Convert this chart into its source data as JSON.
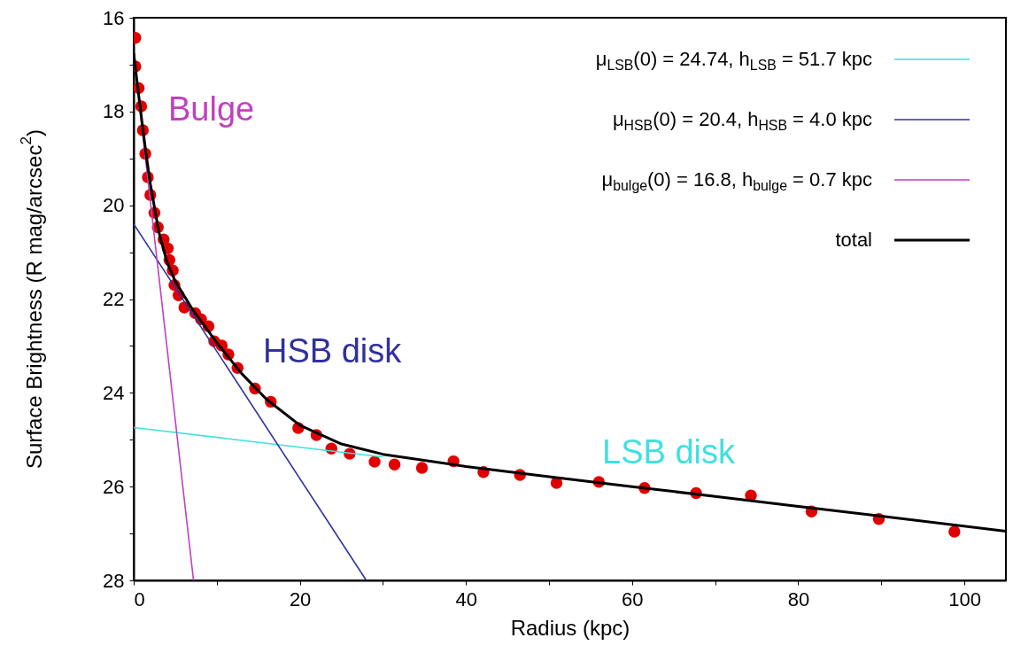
{
  "chart_data": {
    "type": "line",
    "xlabel": "Radius (kpc)",
    "ylabel": "Surface Brightness (R mag/arcsec$^{2}$)",
    "xlim": [
      0,
      105
    ],
    "ylim": [
      28,
      16
    ],
    "xticks": [
      0,
      {
        "value": 10,
        "label": null
      },
      20,
      {
        "value": 30,
        "label": null
      },
      40,
      {
        "value": 50,
        "label": null
      },
      60,
      {
        "value": 70,
        "label": null
      },
      80,
      {
        "value": 90,
        "label": null
      },
      100
    ],
    "yticks": [
      16,
      {
        "value": 17,
        "label": null
      },
      18,
      {
        "value": 19,
        "label": null
      },
      20,
      {
        "value": 21,
        "label": null
      },
      22,
      {
        "value": 23,
        "label": null
      },
      24,
      {
        "value": 25,
        "label": null
      },
      26,
      {
        "value": 27,
        "label": null
      },
      28
    ],
    "grid": false,
    "legend": "top right",
    "series": [
      {
        "name": "μ$_{LSB}$(0) = 24.74, h$_{LSB}$ = 51.7 kpc",
        "color": "#40e0e0",
        "x": [
          0,
          30
        ],
        "values": [
          24.74,
          25.37
        ]
      },
      {
        "name": "μ$_{HSB}$(0) = 20.4, h$_{HSB}$ = 4.0 kpc",
        "color": "#3030a0",
        "x": [
          0,
          28
        ],
        "values": [
          20.4,
          28
        ]
      },
      {
        "name": "μ$_{bulge}$(0) = 16.8, h$_{bulge}$ = 0.7 kpc",
        "color": "#c040c0",
        "x": [
          0,
          7.2
        ],
        "values": [
          16.8,
          28
        ]
      },
      {
        "type": "scatter",
        "marker": "circle",
        "color": "#e00000",
        "x": [
          0.2,
          0.2,
          0.6,
          0.9,
          1.1,
          1.4,
          1.7,
          2.0,
          2.5,
          2.9,
          3.6,
          4.1,
          4.3,
          4.7,
          4.9,
          5.4,
          6.1,
          7.4,
          8.1,
          9.0,
          9.7,
          10.6,
          11.4,
          12.5,
          14.6,
          16.5,
          19.8,
          22.0,
          23.8,
          26.0,
          29.0,
          31.4,
          34.7,
          38.5,
          42.1,
          46.5,
          50.9,
          56.0,
          61.5,
          67.7,
          74.3,
          81.6,
          89.7,
          98.8
        ],
        "values": [
          16.43,
          17.04,
          17.5,
          17.89,
          18.4,
          18.9,
          19.4,
          19.78,
          20.16,
          20.47,
          20.73,
          20.92,
          21.17,
          21.39,
          21.7,
          21.92,
          22.18,
          22.3,
          22.43,
          22.58,
          22.9,
          22.99,
          23.18,
          23.47,
          23.91,
          24.19,
          24.75,
          24.9,
          25.19,
          25.3,
          25.47,
          25.53,
          25.6,
          25.46,
          25.69,
          25.75,
          25.92,
          25.9,
          26.03,
          26.14,
          26.19,
          26.53,
          26.69,
          26.96
        ]
      },
      {
        "name": "total",
        "color": "#000000",
        "x": [
          0,
          0.5,
          1,
          1.5,
          2,
          3,
          4,
          5,
          7,
          10,
          13,
          16,
          20,
          25,
          30,
          40,
          50,
          60,
          70,
          80,
          90,
          105
        ],
        "values": [
          16.76,
          17.51,
          18.23,
          18.92,
          19.54,
          20.55,
          21.21,
          21.62,
          22.2,
          22.93,
          23.59,
          24.14,
          24.69,
          25.09,
          25.31,
          25.57,
          25.79,
          26.0,
          26.21,
          26.42,
          26.63,
          26.95
        ]
      }
    ],
    "annotations": [
      "LSB disk",
      "HSB disk",
      "Bulge"
    ]
  }
}
